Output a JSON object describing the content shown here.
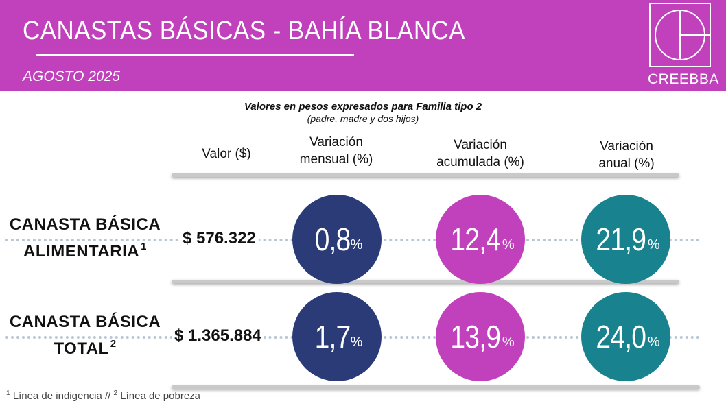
{
  "header": {
    "title": "CANASTAS  BÁSICAS - BAHÍA  BLANCA",
    "subtitle": "AGOSTO 2025",
    "logo_text": "CREEBBA"
  },
  "note": {
    "line1": "Valores en pesos expresados para Familia tipo 2",
    "line2": "(padre, madre y dos hijos)"
  },
  "columns": {
    "valor": "Valor ($)",
    "mensual_1": "Variación",
    "mensual_2": "mensual (%)",
    "acumulada_1": "Variación",
    "acumulada_2": "acumulada (%)",
    "anual_1": "Variación",
    "anual_2": "anual (%)"
  },
  "rows": [
    {
      "label_1": "CANASTA BÁSICA",
      "label_2": "ALIMENTARIA",
      "sup": "1",
      "valor": "$ 576.322",
      "mensual": "0,8",
      "acumulada": "12,4",
      "anual": "21,9"
    },
    {
      "label_1": "CANASTA BÁSICA",
      "label_2": "TOTAL",
      "sup": "2",
      "valor": "$ 1.365.884",
      "mensual": "1,7",
      "acumulada": "13,9",
      "anual": "24,0"
    }
  ],
  "percent_sign": "%",
  "footnote": {
    "sup1": "1",
    "text1": " Línea de indigencia   //   ",
    "sup2": "2",
    "text2": " Línea de pobreza"
  },
  "colors": {
    "header": "#c041bb",
    "navy": "#2b3b78",
    "magenta": "#c041bb",
    "teal": "#19828f"
  }
}
